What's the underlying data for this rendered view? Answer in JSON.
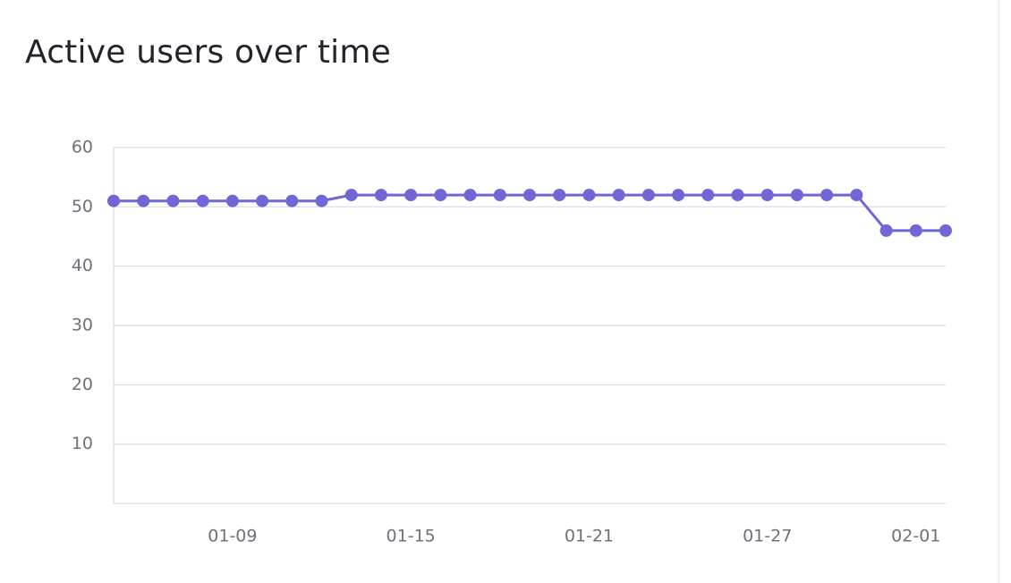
{
  "chart_data": {
    "type": "line",
    "title": "Active users over time",
    "categories": [
      null,
      null,
      null,
      null,
      "01-09",
      null,
      null,
      null,
      null,
      null,
      "01-15",
      null,
      null,
      null,
      null,
      null,
      "01-21",
      null,
      null,
      null,
      null,
      null,
      "01-27",
      null,
      null,
      null,
      null,
      "02-01",
      null
    ],
    "series": [
      {
        "name": "Active users",
        "color": "#7166d6",
        "values": [
          51,
          51,
          51,
          51,
          51,
          51,
          51,
          51,
          52,
          52,
          52,
          52,
          52,
          52,
          52,
          52,
          52,
          52,
          52,
          52,
          52,
          52,
          52,
          52,
          52,
          52,
          46,
          46,
          46
        ]
      }
    ],
    "ylim": [
      0,
      60
    ],
    "yticks": [
      10,
      20,
      30,
      40,
      50,
      60
    ],
    "grid": true
  }
}
